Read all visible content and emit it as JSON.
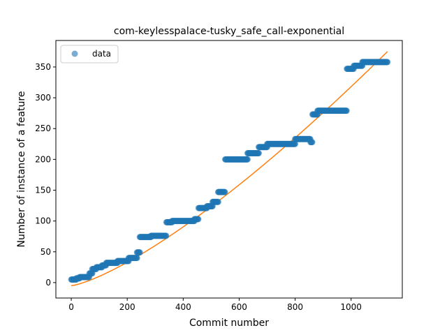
{
  "chart_data": {
    "type": "scatter",
    "title": "com-keylesspalace-tusky_safe_call-exponential",
    "xlabel": "Commit number",
    "ylabel": "Number of instance of a feature",
    "xlim": [
      -55,
      1183
    ],
    "ylim": [
      -25,
      393
    ],
    "x_ticks": [
      0,
      200,
      400,
      600,
      800,
      1000
    ],
    "y_ticks": [
      0,
      50,
      100,
      150,
      200,
      250,
      300,
      350
    ],
    "grid": false,
    "legend": {
      "placement": "upper left",
      "entries": [
        "data"
      ]
    },
    "colors": {
      "data": "#1f77b4",
      "fit": "#ff7f0e"
    },
    "series": [
      {
        "name": "data",
        "kind": "scatter",
        "steps": [
          {
            "x": [
              0,
              18
            ],
            "y": 5
          },
          {
            "x": [
              18,
              30
            ],
            "y": 7
          },
          {
            "x": [
              30,
              65
            ],
            "y": 9
          },
          {
            "x": [
              65,
              75
            ],
            "y": 15
          },
          {
            "x": [
              75,
              90
            ],
            "y": 22
          },
          {
            "x": [
              90,
              110
            ],
            "y": 25
          },
          {
            "x": [
              110,
              125
            ],
            "y": 28
          },
          {
            "x": [
              125,
              165
            ],
            "y": 32
          },
          {
            "x": [
              165,
              205
            ],
            "y": 35
          },
          {
            "x": [
              205,
              235
            ],
            "y": 40
          },
          {
            "x": [
              235,
              245
            ],
            "y": 49
          },
          {
            "x": [
              245,
              285
            ],
            "y": 74
          },
          {
            "x": [
              285,
              340
            ],
            "y": 76
          },
          {
            "x": [
              340,
              360
            ],
            "y": 98
          },
          {
            "x": [
              360,
              440
            ],
            "y": 100
          },
          {
            "x": [
              440,
              455
            ],
            "y": 103
          },
          {
            "x": [
              455,
              485
            ],
            "y": 121
          },
          {
            "x": [
              485,
              505
            ],
            "y": 124
          },
          {
            "x": [
              505,
              525
            ],
            "y": 131
          },
          {
            "x": [
              525,
              550
            ],
            "y": 147
          },
          {
            "x": [
              550,
              630
            ],
            "y": 200
          },
          {
            "x": [
              630,
              670
            ],
            "y": 210
          },
          {
            "x": [
              670,
              700
            ],
            "y": 220
          },
          {
            "x": [
              700,
              800
            ],
            "y": 225
          },
          {
            "x": [
              800,
              855
            ],
            "y": 233
          },
          {
            "x": [
              855,
              862
            ],
            "y": 228
          },
          {
            "x": [
              862,
              880
            ],
            "y": 273
          },
          {
            "x": [
              880,
              985
            ],
            "y": 279
          },
          {
            "x": [
              985,
              1010
            ],
            "y": 347
          },
          {
            "x": [
              1010,
              1040
            ],
            "y": 352
          },
          {
            "x": [
              1040,
              1130
            ],
            "y": 358
          }
        ]
      },
      {
        "name": "fit",
        "kind": "line",
        "curve": {
          "x_start": 0,
          "x_end": 1130,
          "y_start": -5,
          "y_end": 375,
          "exponent": 1.33
        }
      }
    ]
  }
}
